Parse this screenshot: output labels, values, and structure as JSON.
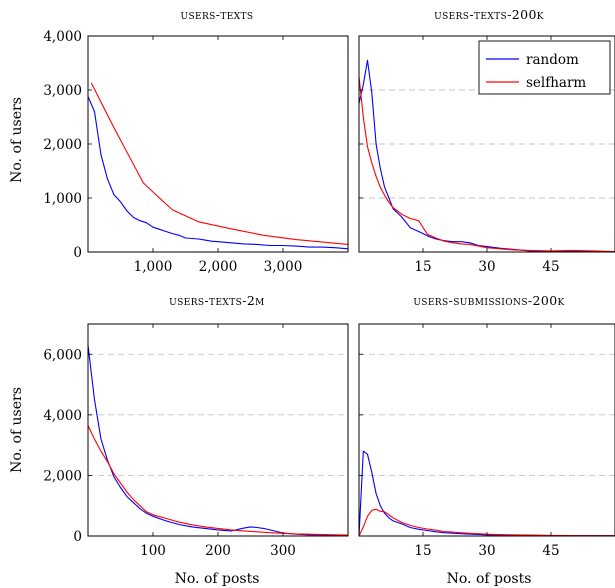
{
  "chart_data": [
    {
      "type": "line",
      "title": "users-texts",
      "xlabel": "",
      "ylabel": "No. of users",
      "xlim": [
        0,
        4000
      ],
      "ylim": [
        0,
        4000
      ],
      "xticks": [
        1000,
        2000,
        3000
      ],
      "xtick_labels": [
        "1,000",
        "2,000",
        "3,000"
      ],
      "yticks": [
        0,
        1000,
        2000,
        3000,
        4000
      ],
      "ytick_labels": [
        "0",
        "1,000",
        "2,000",
        "3,000",
        "4,000"
      ],
      "grid": false,
      "series": [
        {
          "name": "random",
          "color": "#0000ff",
          "x": [
            0,
            100,
            200,
            300,
            400,
            500,
            600,
            700,
            800,
            900,
            1000,
            1100,
            1200,
            1300,
            1400,
            1500,
            1600,
            1700,
            1800,
            1900,
            2000,
            2200,
            2400,
            2600,
            2800,
            3000,
            3200,
            3400,
            3600,
            3800,
            4000
          ],
          "values": [
            2880,
            2600,
            1800,
            1350,
            1060,
            930,
            760,
            640,
            580,
            540,
            460,
            420,
            380,
            340,
            310,
            260,
            250,
            240,
            220,
            200,
            190,
            170,
            150,
            140,
            120,
            120,
            110,
            90,
            90,
            80,
            60
          ]
        },
        {
          "name": "selfharm",
          "color": "#ff0000",
          "x": [
            50,
            400,
            850,
            1100,
            1300,
            1700,
            2200,
            2700,
            3200,
            4000
          ],
          "values": [
            3130,
            2300,
            1280,
            1000,
            780,
            560,
            430,
            310,
            230,
            140
          ]
        }
      ]
    },
    {
      "type": "line",
      "title": "users-texts-200k",
      "xlabel": "",
      "ylabel": "",
      "xlim": [
        0,
        60
      ],
      "ylim": [
        0,
        4000
      ],
      "xticks": [
        15,
        30,
        45
      ],
      "xtick_labels": [
        "15",
        "30",
        "45"
      ],
      "grid": true,
      "legend": {
        "position": "top-right",
        "entries": [
          "random",
          "selfharm"
        ]
      },
      "series": [
        {
          "name": "random",
          "color": "#0000ff",
          "x": [
            0,
            1,
            2,
            3,
            4,
            5,
            6,
            7,
            8,
            10,
            12,
            14,
            16,
            18,
            20,
            22,
            24,
            26,
            28,
            30,
            33,
            36,
            40,
            45,
            50,
            55,
            60
          ],
          "values": [
            2750,
            3100,
            3550,
            2950,
            2000,
            1550,
            1200,
            1000,
            800,
            650,
            450,
            380,
            300,
            240,
            210,
            190,
            190,
            170,
            120,
            100,
            70,
            50,
            20,
            10,
            10,
            10,
            5
          ]
        },
        {
          "name": "selfharm",
          "color": "#ff0000",
          "x": [
            0,
            1,
            2,
            3,
            4,
            5,
            6,
            7,
            8,
            10,
            12,
            14,
            16,
            18,
            20,
            22,
            24,
            26,
            28,
            30,
            33,
            36,
            40,
            45,
            50,
            55,
            60
          ],
          "values": [
            3250,
            2500,
            1950,
            1650,
            1400,
            1200,
            1050,
            920,
            820,
            700,
            620,
            580,
            330,
            260,
            200,
            170,
            150,
            140,
            110,
            80,
            60,
            40,
            30,
            20,
            30,
            20,
            10
          ]
        }
      ]
    },
    {
      "type": "line",
      "title": "users-texts-2m",
      "xlabel": "No. of posts",
      "ylabel": "No. of users",
      "xlim": [
        0,
        400
      ],
      "ylim": [
        0,
        7000
      ],
      "xticks": [
        100,
        200,
        300
      ],
      "xtick_labels": [
        "100",
        "200",
        "300"
      ],
      "yticks": [
        0,
        2000,
        4000,
        6000
      ],
      "ytick_labels": [
        "0",
        "2,000",
        "4,000",
        "6,000"
      ],
      "grid": true,
      "series": [
        {
          "name": "random",
          "color": "#0000ff",
          "x": [
            0,
            10,
            20,
            30,
            40,
            50,
            60,
            70,
            80,
            90,
            100,
            120,
            140,
            160,
            180,
            200,
            220,
            240,
            250,
            260,
            270,
            280,
            300,
            320,
            340,
            360,
            380,
            400
          ],
          "values": [
            6300,
            4500,
            3200,
            2500,
            1950,
            1600,
            1300,
            1100,
            900,
            750,
            650,
            500,
            380,
            300,
            250,
            200,
            170,
            260,
            300,
            280,
            250,
            200,
            100,
            60,
            40,
            40,
            30,
            20
          ]
        },
        {
          "name": "selfharm",
          "color": "#ff0000",
          "x": [
            0,
            10,
            20,
            30,
            40,
            50,
            60,
            70,
            80,
            90,
            100,
            120,
            140,
            160,
            180,
            200,
            220,
            240,
            260,
            280,
            300,
            320,
            340,
            360,
            380,
            400
          ],
          "values": [
            3650,
            3200,
            2800,
            2450,
            2050,
            1750,
            1450,
            1200,
            1000,
            800,
            700,
            580,
            460,
            370,
            300,
            250,
            200,
            170,
            140,
            110,
            90,
            70,
            60,
            50,
            40,
            30
          ]
        }
      ]
    },
    {
      "type": "line",
      "title": "users-submissions-200k",
      "xlabel": "No. of posts",
      "ylabel": "",
      "xlim": [
        0,
        60
      ],
      "ylim": [
        0,
        7000
      ],
      "xticks": [
        15,
        30,
        45
      ],
      "xtick_labels": [
        "15",
        "30",
        "45"
      ],
      "grid": true,
      "series": [
        {
          "name": "random",
          "color": "#0000ff",
          "x": [
            0,
            1,
            2,
            3,
            4,
            5,
            6,
            7,
            8,
            10,
            12,
            14,
            16,
            18,
            20,
            25,
            30,
            35,
            40,
            45,
            50,
            55,
            60
          ],
          "values": [
            0,
            2800,
            2700,
            2100,
            1400,
            1000,
            750,
            600,
            500,
            400,
            280,
            220,
            180,
            140,
            110,
            70,
            40,
            25,
            20,
            15,
            10,
            10,
            10
          ]
        },
        {
          "name": "selfharm",
          "color": "#ff0000",
          "x": [
            0,
            1,
            2,
            3,
            4,
            5,
            6,
            7,
            8,
            10,
            12,
            14,
            16,
            18,
            20,
            25,
            30,
            35,
            40,
            45,
            50,
            55,
            60
          ],
          "values": [
            0,
            300,
            650,
            850,
            880,
            820,
            800,
            700,
            600,
            450,
            350,
            280,
            230,
            190,
            150,
            100,
            60,
            40,
            30,
            20,
            15,
            10,
            10
          ]
        }
      ]
    }
  ]
}
